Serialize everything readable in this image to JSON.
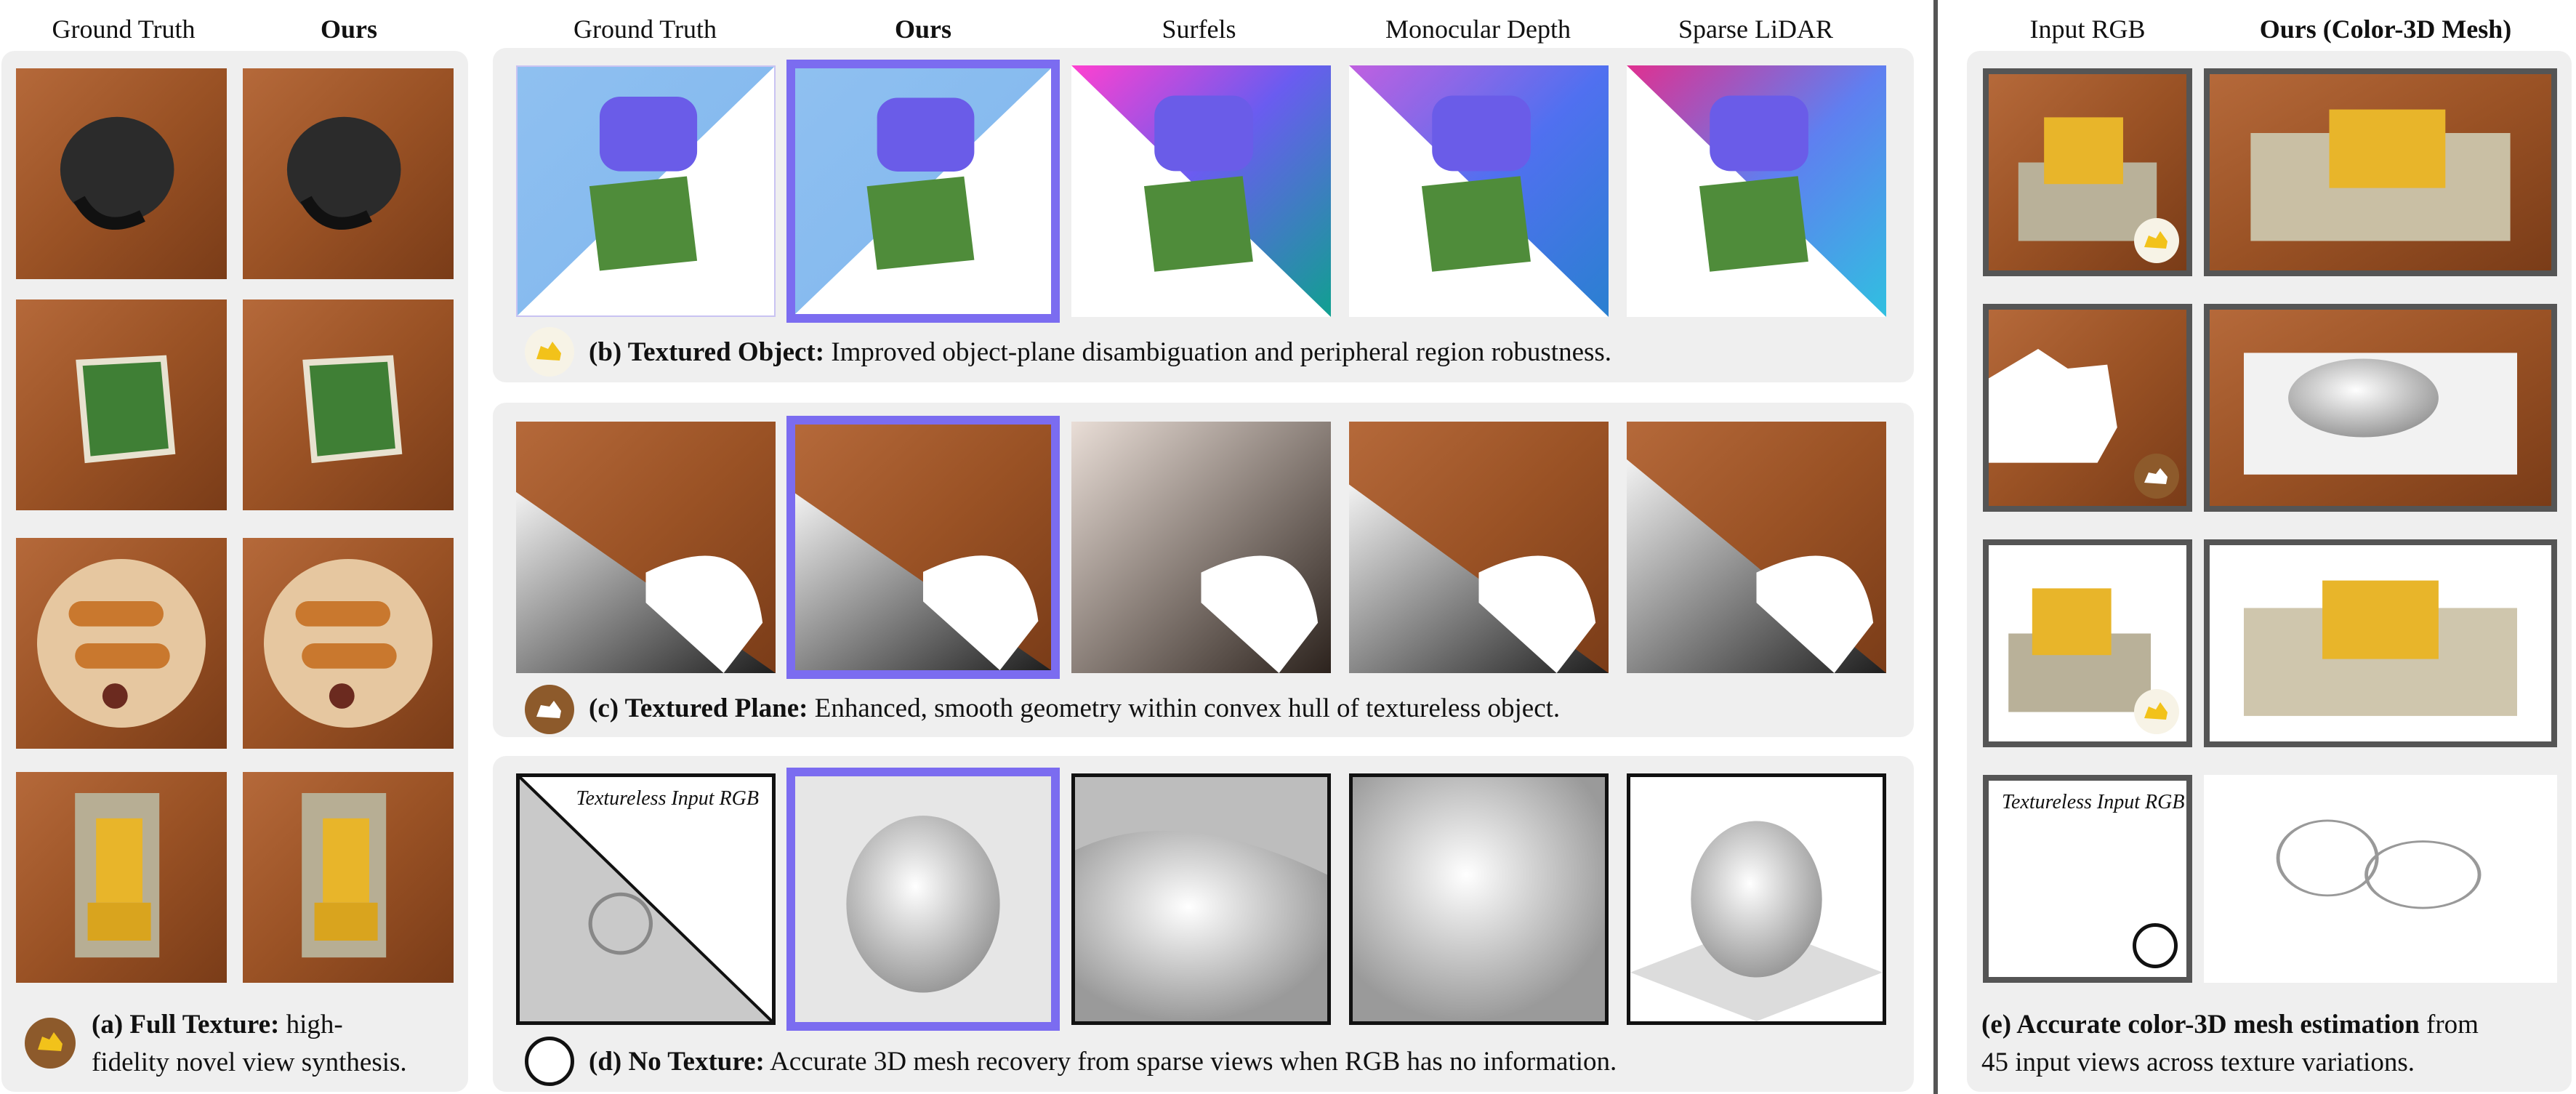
{
  "left": {
    "headers": [
      "Ground Truth",
      "Ours"
    ],
    "caption": {
      "bold": "(a) Full Texture:",
      "text": " high-",
      "line2": "fidelity novel view synthesis."
    }
  },
  "middle": {
    "headers": [
      "Ground Truth",
      "Ours",
      "Surfels",
      "Monocular Depth",
      "Sparse LiDAR"
    ],
    "row_b": {
      "bold": "(b) Textured Object:",
      "text": " Improved object-plane disambiguation and peripheral region robustness."
    },
    "row_c": {
      "bold": "(c) Textured Plane:",
      "text": " Enhanced, smooth geometry within convex hull of textureless object."
    },
    "row_d": {
      "bold": "(d) No Texture:",
      "text": " Accurate 3D mesh recovery from sparse views when RGB has no information.",
      "tile_label": "Textureless Input RGB"
    }
  },
  "right": {
    "headers": [
      "Input RGB",
      "Ours (Color-3D Mesh)"
    ],
    "tile_label": "Textureless Input RGB",
    "caption": {
      "bold": "(e) Accurate color-3D mesh estimation",
      "text": " from",
      "line2": "45 input views across texture variations."
    }
  },
  "colors": {
    "highlight": "#7b6cf0",
    "panel": "#efefef",
    "wood": "#a0592a",
    "divider": "#555555"
  }
}
